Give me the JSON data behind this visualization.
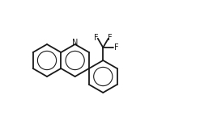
{
  "bg_color": "#ffffff",
  "bond_color": "#1a1a1a",
  "figsize": [
    2.47,
    1.49
  ],
  "dpi": 100,
  "lw": 1.3,
  "r": 20,
  "N_label": "N",
  "F_labels": [
    "F",
    "F",
    "F"
  ],
  "fontsize_N": 7,
  "fontsize_F": 7
}
